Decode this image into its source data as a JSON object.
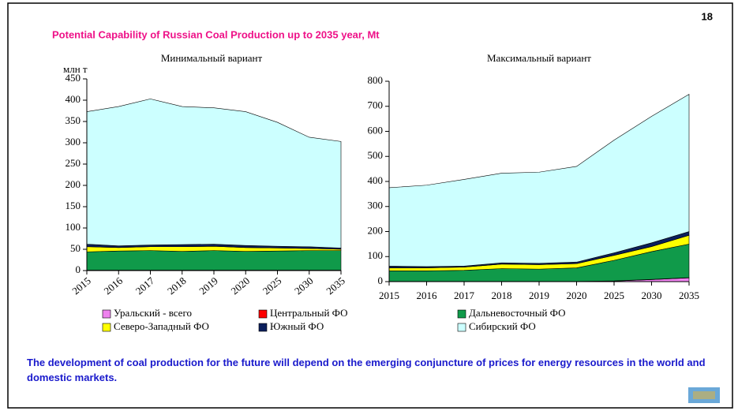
{
  "slide_number": "18",
  "title": "Potential Capability of Russian Coal Production up to 2035 year, Mt",
  "footer": "The development of coal production for the future will depend on the emerging conjuncture of prices for energy resources in the world and domestic markets.",
  "chart_data": [
    {
      "type": "stacked_area",
      "title": "Минимальный вариант",
      "y_label": "млн т",
      "categories": [
        "2015",
        "2016",
        "2017",
        "2018",
        "2019",
        "2020",
        "2025",
        "2030",
        "2035"
      ],
      "ylim": [
        0,
        450
      ],
      "yticks": [
        0,
        50,
        100,
        150,
        200,
        250,
        300,
        350,
        400,
        450
      ],
      "series": [
        {
          "name": "Уральский - всего",
          "color": "#ee82ee",
          "values": [
            0,
            0,
            0,
            0,
            0,
            0,
            0,
            0,
            0
          ]
        },
        {
          "name": "Центральный ФО",
          "color": "#ff0000",
          "values": [
            1,
            1,
            1,
            1,
            1,
            1,
            1,
            1,
            1
          ]
        },
        {
          "name": "Дальневосточный ФО",
          "color": "#109a4a",
          "values": [
            43,
            45,
            46,
            44,
            46,
            44,
            45,
            46,
            46
          ]
        },
        {
          "name": "Северо-Западный ФО",
          "color": "#ffff00",
          "values": [
            12,
            8,
            9,
            11,
            10,
            9,
            7,
            5,
            3
          ]
        },
        {
          "name": "Южный ФО",
          "color": "#0b1f5c",
          "values": [
            6,
            4,
            4,
            5,
            5,
            5,
            4,
            4,
            3
          ]
        },
        {
          "name": "Сибирский ФО",
          "color": "#ccffff",
          "values": [
            311,
            327,
            343,
            324,
            320,
            314,
            291,
            257,
            250
          ]
        }
      ]
    },
    {
      "type": "stacked_area",
      "title": "Максимальный вариант",
      "categories": [
        "2015",
        "2016",
        "2017",
        "2018",
        "2019",
        "2020",
        "2025",
        "2030",
        "2035"
      ],
      "ylim": [
        0,
        800
      ],
      "yticks": [
        0,
        100,
        200,
        300,
        400,
        500,
        600,
        700,
        800
      ],
      "series": [
        {
          "name": "Уральский - всего",
          "color": "#ee82ee",
          "values": [
            0,
            0,
            0,
            0,
            0,
            0,
            2,
            8,
            15
          ]
        },
        {
          "name": "Центральный ФО",
          "color": "#ff0000",
          "values": [
            1,
            1,
            1,
            1,
            1,
            1,
            1,
            1,
            1
          ]
        },
        {
          "name": "Дальневосточный ФО",
          "color": "#109a4a",
          "values": [
            42,
            42,
            44,
            51,
            49,
            54,
            82,
            111,
            134
          ]
        },
        {
          "name": "Северо-Западный ФО",
          "color": "#ffff00",
          "values": [
            12,
            12,
            13,
            18,
            18,
            17,
            20,
            20,
            35
          ]
        },
        {
          "name": "Южный ФО",
          "color": "#0b1f5c",
          "values": [
            7,
            5,
            4,
            5,
            5,
            6,
            10,
            15,
            15
          ]
        },
        {
          "name": "Сибирский ФО",
          "color": "#ccffff",
          "values": [
            313,
            325,
            346,
            358,
            364,
            382,
            450,
            505,
            548
          ]
        }
      ]
    }
  ]
}
